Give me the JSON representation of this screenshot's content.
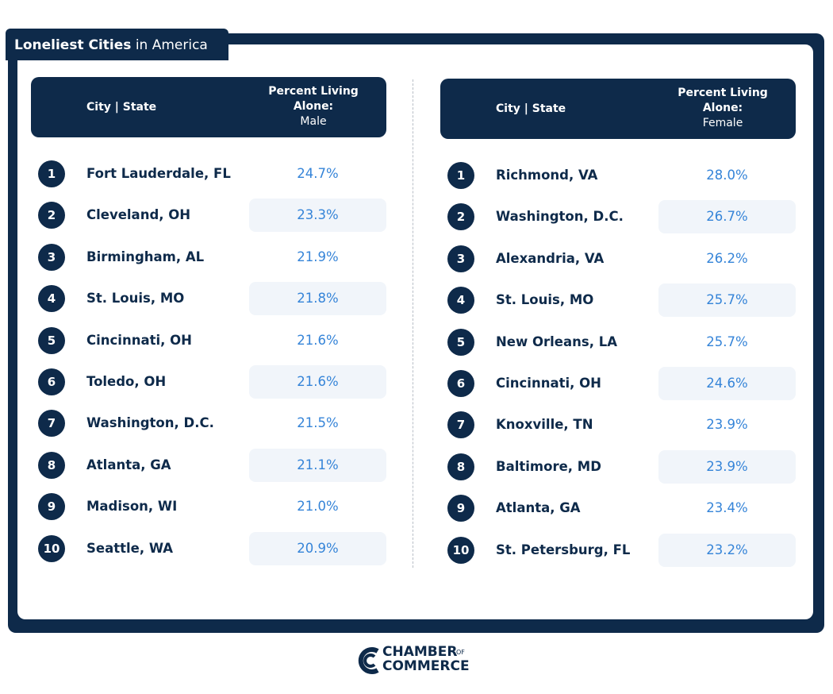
{
  "header": {
    "title_bold": "Loneliest Cities",
    "title_rest": "in America"
  },
  "tables": [
    {
      "header": {
        "city_state": "City | State",
        "percent": "Percent Living Alone:",
        "gender": "Male"
      },
      "rows": [
        [
          "1",
          "Fort Lauderdale, FL",
          "24.7%"
        ],
        [
          "2",
          "Cleveland, OH",
          "23.3%"
        ],
        [
          "3",
          "Birmingham, AL",
          "21.9%"
        ],
        [
          "4",
          "St. Louis, MO",
          "21.8%"
        ],
        [
          "5",
          "Cincinnati, OH",
          "21.6%"
        ],
        [
          "6",
          "Toledo, OH",
          "21.6%"
        ],
        [
          "7",
          "Washington, D.C.",
          "21.5%"
        ],
        [
          "8",
          "Atlanta, GA",
          "21.1%"
        ],
        [
          "9",
          "Madison, WI",
          "21.0%"
        ],
        [
          "10",
          "Seattle, WA",
          "20.9%"
        ]
      ]
    },
    {
      "header": {
        "city_state": "City | State",
        "percent": "Percent Living Alone:",
        "gender": "Female"
      },
      "rows": [
        [
          "1",
          "Richmond, VA",
          "28.0%"
        ],
        [
          "2",
          "Washington, D.C.",
          "26.7%"
        ],
        [
          "3",
          "Alexandria, VA",
          "26.2%"
        ],
        [
          "4",
          "St. Louis, MO",
          "25.7%"
        ],
        [
          "5",
          "New Orleans, LA",
          "25.7%"
        ],
        [
          "6",
          "Cincinnati, OH",
          "24.6%"
        ],
        [
          "7",
          "Knoxville, TN",
          "23.9%"
        ],
        [
          "8",
          "Baltimore, MD",
          "23.9%"
        ],
        [
          "9",
          "Atlanta, GA",
          "23.4%"
        ],
        [
          "10",
          "St. Petersburg, FL",
          "23.2%"
        ]
      ]
    }
  ],
  "logo": {
    "line1": "CHAMBER",
    "of": "OF",
    "line2": "COMMERCE"
  }
}
